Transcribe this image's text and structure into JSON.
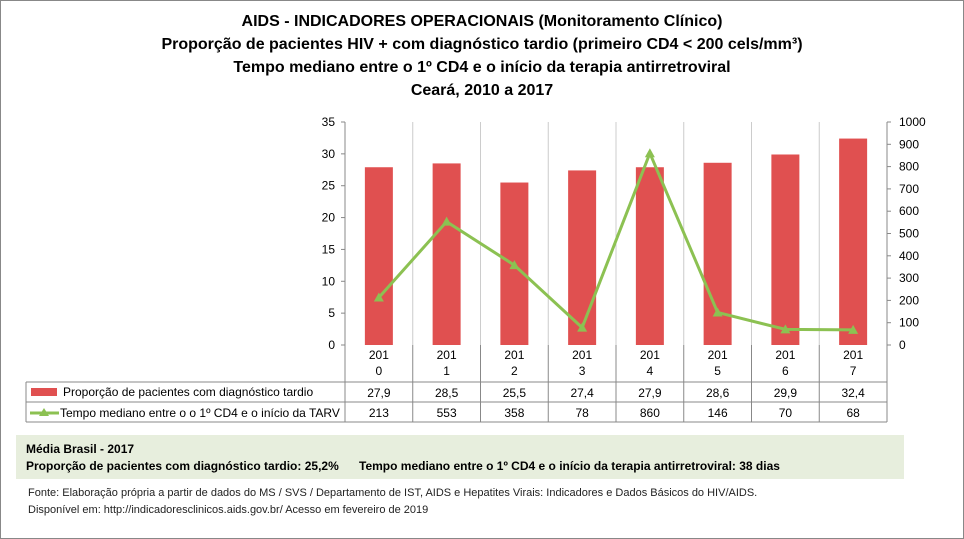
{
  "titles": [
    "AIDS - INDICADORES OPERACIONAIS (Monitoramento Clínico)",
    "Proporção de pacientes HIV + com diagnóstico tardio (primeiro CD4 < 200 cels/mm³)",
    "Tempo mediano entre o 1º CD4 e o início da terapia antirretroviral",
    "Ceará, 2010 a 2017"
  ],
  "chart_data": {
    "type": "bar+line",
    "categories": [
      "2010",
      "2011",
      "2012",
      "2013",
      "2014",
      "2015",
      "2016",
      "2017"
    ],
    "category_labels": [
      [
        "201",
        "0"
      ],
      [
        "201",
        "1"
      ],
      [
        "201",
        "2"
      ],
      [
        "201",
        "3"
      ],
      [
        "201",
        "4"
      ],
      [
        "201",
        "5"
      ],
      [
        "201",
        "6"
      ],
      [
        "201",
        "7"
      ]
    ],
    "series": [
      {
        "name": "Proporção de pacientes com diagnóstico tardio",
        "type": "bar",
        "axis": "left",
        "color": "#e05050",
        "values": [
          27.9,
          28.5,
          25.5,
          27.4,
          27.9,
          28.6,
          29.9,
          32.4
        ],
        "labels": [
          "27,9",
          "28,5",
          "25,5",
          "27,4",
          "27,9",
          "28,6",
          "29,9",
          "32,4"
        ]
      },
      {
        "name": "Tempo mediano entre o o 1º CD4 e o início da TARV",
        "type": "line",
        "axis": "right",
        "color": "#8cc152",
        "marker": "triangle",
        "values": [
          213,
          553,
          358,
          78,
          860,
          146,
          70,
          68
        ],
        "labels": [
          "213",
          "553",
          "358",
          "78",
          "860",
          "146",
          "70",
          "68"
        ]
      }
    ],
    "ylim_left": [
      0,
      35
    ],
    "yticks_left": [
      0,
      5,
      10,
      15,
      20,
      25,
      30,
      35
    ],
    "ylim_right": [
      0,
      1000
    ],
    "yticks_right": [
      0,
      100,
      200,
      300,
      400,
      500,
      600,
      700,
      800,
      900,
      1000
    ],
    "grid": "vertical",
    "legend": "data-table"
  },
  "brasil": {
    "title": "Média Brasil  - 2017",
    "prop": "Proporção de pacientes com diagnóstico  tardio: 25,2%",
    "tempo": "Tempo mediano entre o 1º CD4 e o início da terapia antirretroviral: 38 dias"
  },
  "footer": [
    "Fonte: Elaboração própria a partir de dados do  MS / SVS / Departamento de IST, AIDS e Hepatites Virais: Indicadores e Dados Básicos do HIV/AIDS.",
    "Disponível em: http://indicadoresclinicos.aids.gov.br/ Acesso em fevereiro de 2019"
  ]
}
